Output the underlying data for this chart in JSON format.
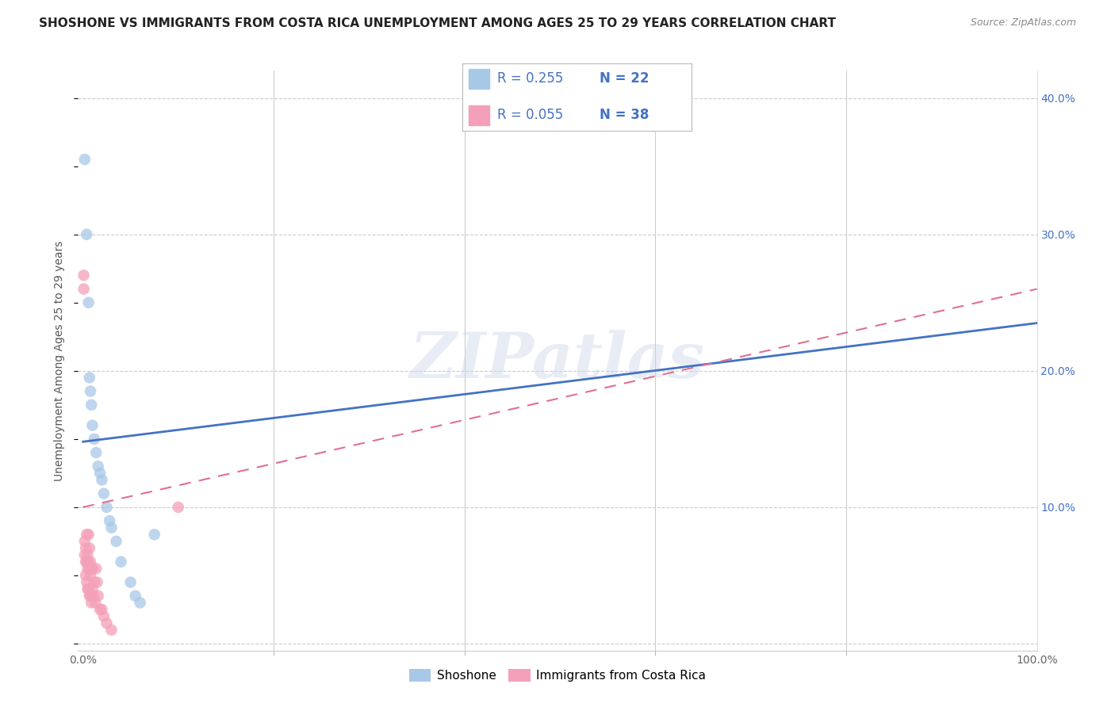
{
  "title": "SHOSHONE VS IMMIGRANTS FROM COSTA RICA UNEMPLOYMENT AMONG AGES 25 TO 29 YEARS CORRELATION CHART",
  "source": "Source: ZipAtlas.com",
  "ylabel": "Unemployment Among Ages 25 to 29 years",
  "legend1_label": "Shoshone",
  "legend2_label": "Immigrants from Costa Rica",
  "R1": 0.255,
  "N1": 22,
  "R2": 0.055,
  "N2": 38,
  "shoshone_color": "#a8c8e8",
  "shoshone_line_color": "#4472c4",
  "costarica_color": "#f4a0b8",
  "costarica_line_color": "#e07090",
  "shoshone_x": [
    0.002,
    0.004,
    0.006,
    0.007,
    0.008,
    0.009,
    0.01,
    0.012,
    0.014,
    0.016,
    0.018,
    0.02,
    0.022,
    0.025,
    0.028,
    0.03,
    0.035,
    0.04,
    0.05,
    0.055,
    0.06,
    0.075
  ],
  "shoshone_y": [
    0.355,
    0.3,
    0.25,
    0.195,
    0.185,
    0.175,
    0.16,
    0.15,
    0.14,
    0.13,
    0.125,
    0.12,
    0.11,
    0.1,
    0.09,
    0.085,
    0.075,
    0.06,
    0.045,
    0.035,
    0.03,
    0.08
  ],
  "costarica_x": [
    0.001,
    0.001,
    0.002,
    0.002,
    0.003,
    0.003,
    0.003,
    0.004,
    0.004,
    0.004,
    0.005,
    0.005,
    0.005,
    0.006,
    0.006,
    0.006,
    0.007,
    0.007,
    0.007,
    0.008,
    0.008,
    0.008,
    0.009,
    0.009,
    0.01,
    0.01,
    0.011,
    0.012,
    0.013,
    0.014,
    0.015,
    0.016,
    0.018,
    0.02,
    0.022,
    0.025,
    0.03,
    0.1
  ],
  "costarica_y": [
    0.27,
    0.26,
    0.075,
    0.065,
    0.07,
    0.06,
    0.05,
    0.08,
    0.06,
    0.045,
    0.065,
    0.055,
    0.04,
    0.08,
    0.06,
    0.04,
    0.07,
    0.055,
    0.035,
    0.06,
    0.05,
    0.035,
    0.055,
    0.03,
    0.055,
    0.04,
    0.035,
    0.045,
    0.03,
    0.055,
    0.045,
    0.035,
    0.025,
    0.025,
    0.02,
    0.015,
    0.01,
    0.1
  ],
  "xlim": [
    -0.005,
    1.0
  ],
  "ylim": [
    -0.005,
    0.42
  ],
  "xticks": [
    0.0,
    1.0
  ],
  "xticklabels": [
    "0.0%",
    "100.0%"
  ],
  "xticks_minor": [
    0.2,
    0.4,
    0.6,
    0.8
  ],
  "yticks_right": [
    0.0,
    0.1,
    0.2,
    0.3,
    0.4
  ],
  "yticklabels_right": [
    "",
    "10.0%",
    "20.0%",
    "30.0%",
    "40.0%"
  ],
  "watermark": "ZIPatlas",
  "background_color": "#ffffff",
  "title_fontsize": 11,
  "axis_fontsize": 10,
  "marker_size": 110,
  "blue_line_x0": 0.0,
  "blue_line_y0": 0.148,
  "blue_line_x1": 1.0,
  "blue_line_y1": 0.235,
  "pink_line_x0": 0.0,
  "pink_line_y0": 0.1,
  "pink_line_x1": 1.0,
  "pink_line_y1": 0.26
}
